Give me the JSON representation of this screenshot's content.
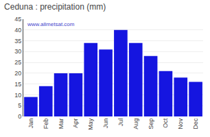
{
  "chart_data": {
    "type": "bar",
    "title": "Ceduna : precipitation (mm)",
    "categories": [
      "Jan",
      "Feb",
      "Mar",
      "Apr",
      "May",
      "Jun",
      "Jul",
      "Aug",
      "Sep",
      "Oct",
      "Nov",
      "Dec"
    ],
    "values": [
      9,
      14,
      20,
      20,
      34,
      31,
      40,
      34,
      28,
      21,
      18,
      16
    ],
    "color": "#1515e0",
    "ylim": [
      0,
      45
    ],
    "yticks": [
      0,
      5,
      10,
      15,
      20,
      25,
      30,
      35,
      40,
      45
    ],
    "grid": true,
    "annotations": [
      "www.allmetsat.com"
    ]
  }
}
